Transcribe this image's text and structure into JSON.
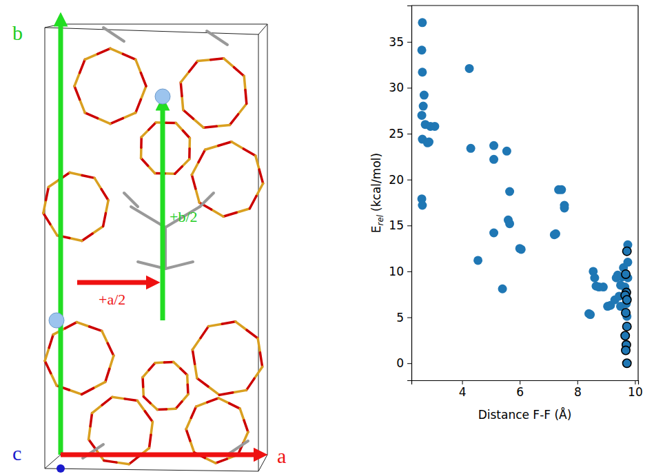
{
  "diagram": {
    "axes": {
      "a": "a",
      "b": "b",
      "c": "c"
    },
    "translations": [
      "+b/2",
      "+a/2"
    ]
  },
  "chart_data": {
    "type": "scatter",
    "x_label": "Distance F-F (Å)",
    "y_label": {
      "text": "E",
      "subscript": "rel",
      "unit": "(kcal/mol)"
    },
    "xlim": [
      2.24,
      10.11
    ],
    "xticks": [
      4,
      6,
      8,
      10
    ],
    "ylim": [
      -1.86,
      38.96
    ],
    "yticks": [
      0,
      5,
      10,
      15,
      20,
      25,
      30,
      35
    ],
    "grid": false,
    "series": [
      {
        "color": "#1f77b4",
        "marker": "circle",
        "x": [
          2.62,
          2.6,
          2.62,
          2.68,
          2.65,
          2.6,
          2.72,
          2.9,
          3.05,
          2.62,
          2.8,
          2.85,
          2.6,
          2.62,
          4.25,
          4.3,
          4.55,
          5.1,
          5.1,
          5.1,
          5.4,
          5.55,
          5.6,
          5.65,
          5.65,
          6.0,
          6.05,
          7.2,
          7.25,
          7.35,
          7.45,
          7.55,
          7.55,
          8.4,
          8.45,
          8.55,
          8.6,
          8.65,
          8.75,
          8.9,
          9.05,
          9.15,
          9.3,
          9.35,
          9.4,
          9.45,
          9.5,
          9.5,
          9.55,
          9.6,
          9.65,
          9.7,
          9.7,
          9.75,
          9.75,
          9.72,
          9.75,
          9.7
        ],
        "values": [
          37.1,
          34.1,
          31.7,
          29.2,
          28.0,
          27.0,
          26.0,
          25.8,
          25.8,
          24.4,
          24.0,
          24.1,
          17.9,
          17.2,
          32.1,
          23.4,
          11.2,
          23.7,
          22.2,
          14.2,
          8.1,
          23.1,
          15.6,
          15.2,
          18.7,
          12.5,
          12.4,
          14.0,
          14.1,
          18.9,
          18.9,
          17.2,
          16.9,
          5.4,
          5.3,
          10.0,
          9.3,
          8.4,
          8.3,
          8.3,
          6.2,
          6.3,
          6.9,
          9.3,
          9.6,
          7.3,
          8.5,
          6.2,
          9.4,
          10.4,
          8.3,
          7.2,
          6.5,
          9.3,
          11.0,
          5.1,
          12.9,
          7.8
        ]
      },
      {
        "color": "#1f77b4",
        "marker": "edged-circle",
        "x": [
          9.72,
          9.68,
          9.7,
          9.66,
          9.72,
          9.68,
          9.72,
          9.66,
          9.7,
          9.68,
          9.72
        ],
        "values": [
          12.2,
          9.7,
          7.7,
          7.4,
          6.9,
          5.5,
          4.0,
          3.0,
          2.0,
          1.4,
          0.0
        ]
      }
    ]
  }
}
